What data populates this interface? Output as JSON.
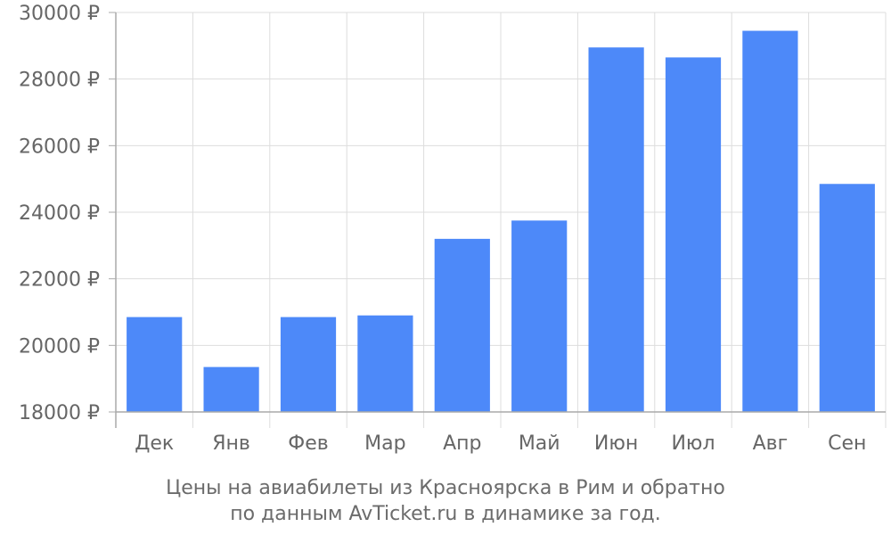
{
  "chart_data": {
    "type": "bar",
    "categories": [
      "Дек",
      "Янв",
      "Фев",
      "Мар",
      "Апр",
      "Май",
      "Июн",
      "Июл",
      "Авг",
      "Сен"
    ],
    "values": [
      20850,
      19350,
      20850,
      20900,
      23200,
      23750,
      28950,
      28650,
      29450,
      24850
    ],
    "ylim": [
      18000,
      30000
    ],
    "yticks": [
      18000,
      20000,
      22000,
      24000,
      26000,
      28000,
      30000
    ],
    "y_unit_suffix": " ₽",
    "grid": true,
    "bar_color": "#4d89f9",
    "grid_color": "#dddddd",
    "axis_color": "#aaaaaa"
  },
  "caption": {
    "line1": "Цены на авиабилеты из Красноярска в Рим и обратно",
    "line2": "по данным AvTicket.ru в динамике за год."
  }
}
